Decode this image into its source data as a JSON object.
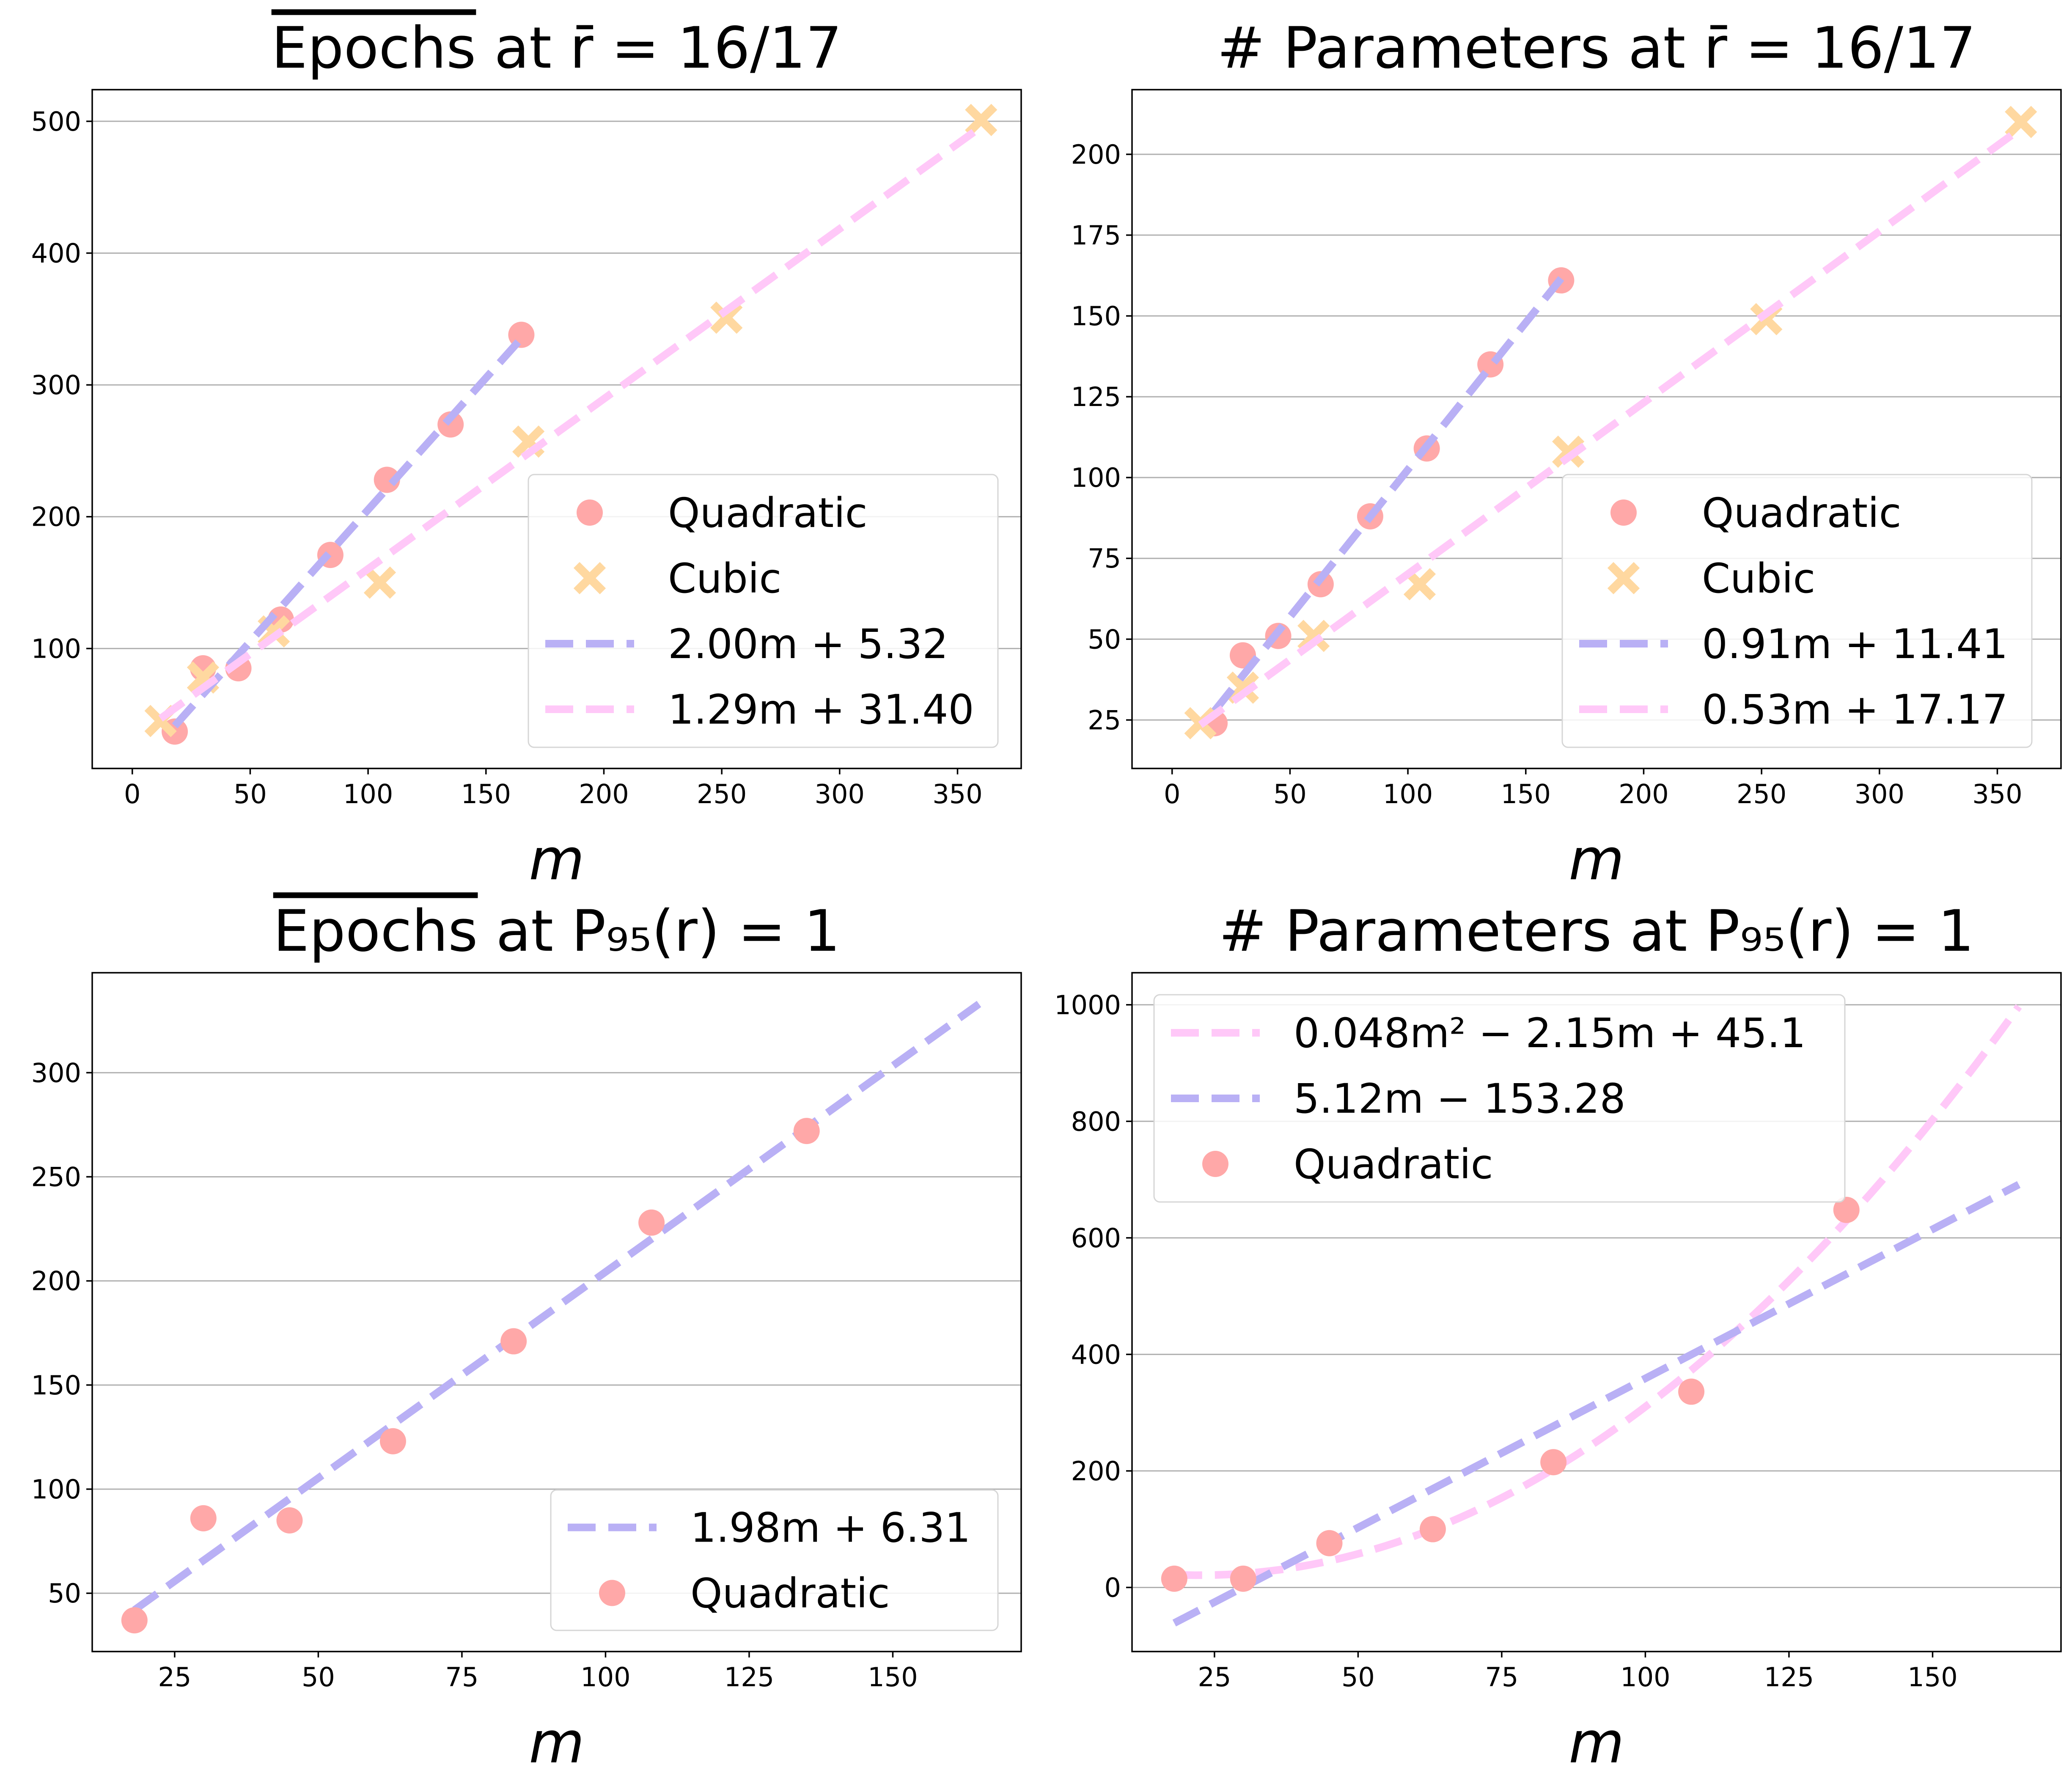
{
  "chart_data": [
    {
      "type": "scatter",
      "title": "Epochs  at r̄ = 16/17",
      "title_overline": "Epochs",
      "title_rest": "  at r̄ = 16/17",
      "xlabel": "m",
      "ylabel": "",
      "xlim": [
        -17,
        377
      ],
      "ylim": [
        9,
        524
      ],
      "xticks": [
        0,
        50,
        100,
        150,
        200,
        250,
        300,
        350
      ],
      "yticks": [
        100,
        200,
        300,
        400,
        500
      ],
      "grid": "y",
      "legend": "lower right",
      "series": [
        {
          "name": "Quadratic",
          "kind": "points",
          "marker": "circle",
          "color": "#ffa8a8",
          "x": [
            18,
            30,
            45,
            63,
            84,
            108,
            135,
            165
          ],
          "y": [
            37,
            85,
            85,
            122,
            171,
            228,
            270,
            338
          ]
        },
        {
          "name": "Cubic",
          "kind": "points",
          "marker": "x",
          "color": "#ffd8a0",
          "x": [
            12,
            30,
            60,
            105,
            168,
            252,
            360
          ],
          "y": [
            45,
            78,
            113,
            150,
            257,
            351,
            501
          ]
        },
        {
          "name": "2.00m + 5.32",
          "kind": "line",
          "color": "#b9b0f5",
          "x": [
            18,
            165
          ],
          "y": [
            41.3,
            335.3
          ]
        },
        {
          "name": "1.29m + 31.40",
          "kind": "line",
          "color": "#ffc8f8",
          "x": [
            12,
            360
          ],
          "y": [
            46.9,
            495.8
          ]
        }
      ]
    },
    {
      "type": "scatter",
      "title": "# Parameters at r̄ = 16/17",
      "title_overline": "",
      "title_rest": "# Parameters at r̄ = 16/17",
      "xlabel": "m",
      "ylabel": "",
      "xlim": [
        -17,
        377
      ],
      "ylim": [
        10,
        220
      ],
      "xticks": [
        0,
        50,
        100,
        150,
        200,
        250,
        300,
        350
      ],
      "yticks": [
        25,
        50,
        75,
        100,
        125,
        150,
        175,
        200
      ],
      "grid": "y",
      "legend": "lower right",
      "series": [
        {
          "name": "Quadratic",
          "kind": "points",
          "marker": "circle",
          "color": "#ffa8a8",
          "x": [
            18,
            30,
            45,
            63,
            84,
            108,
            135,
            165
          ],
          "y": [
            24,
            45,
            51,
            67,
            88,
            109,
            135,
            161
          ]
        },
        {
          "name": "Cubic",
          "kind": "points",
          "marker": "x",
          "color": "#ffd8a0",
          "x": [
            12,
            30,
            60,
            105,
            168,
            252,
            360
          ],
          "y": [
            24,
            35,
            51,
            67,
            108,
            149,
            210
          ]
        },
        {
          "name": "0.91m + 11.41",
          "kind": "line",
          "color": "#b9b0f5",
          "x": [
            18,
            165
          ],
          "y": [
            27.8,
            161.6
          ]
        },
        {
          "name": "0.53m + 17.17",
          "kind": "line",
          "color": "#ffc8f8",
          "x": [
            12,
            360
          ],
          "y": [
            23.5,
            208
          ]
        }
      ]
    },
    {
      "type": "scatter",
      "title": "Epochs at P95(r) = 1",
      "title_overline": "Epochs",
      "title_rest": " at P₉₅(r) = 1",
      "xlabel": "m",
      "ylabel": "",
      "xlim": [
        10.65,
        172.35
      ],
      "ylim": [
        22,
        348
      ],
      "xticks": [
        25,
        50,
        75,
        100,
        125,
        150
      ],
      "yticks": [
        50,
        100,
        150,
        200,
        250,
        300
      ],
      "grid": "y",
      "legend": "lower right",
      "series": [
        {
          "name": "1.98m + 6.31",
          "kind": "line",
          "color": "#b9b0f5",
          "x": [
            18,
            165
          ],
          "y": [
            41.95,
            333
          ]
        },
        {
          "name": "Quadratic",
          "kind": "points",
          "marker": "circle",
          "color": "#ffa8a8",
          "x": [
            18,
            30,
            45,
            63,
            84,
            108,
            135
          ],
          "y": [
            37,
            86,
            85,
            123,
            171,
            228,
            272
          ]
        }
      ]
    },
    {
      "type": "scatter",
      "title": "# Parameters at P95(r) = 1",
      "title_overline": "",
      "title_rest": "# Parameters at P₉₅(r) = 1",
      "xlabel": "m",
      "ylabel": "",
      "xlim": [
        10.65,
        172.35
      ],
      "ylim": [
        -110,
        1055
      ],
      "xticks": [
        25,
        50,
        75,
        100,
        125,
        150
      ],
      "yticks": [
        0,
        200,
        400,
        600,
        800,
        1000
      ],
      "grid": "y",
      "legend": "upper left",
      "series": [
        {
          "name": "0.048m² − 2.15m + 45.1",
          "kind": "curve",
          "color": "#ffc8f8",
          "x_range": [
            18,
            165
          ],
          "coef": [
            0.048,
            -2.15,
            45.1
          ]
        },
        {
          "name": "5.12m − 153.28",
          "kind": "line",
          "color": "#b9b0f5",
          "x": [
            18,
            165
          ],
          "y": [
            -61.12,
            691.52
          ]
        },
        {
          "name": "Quadratic",
          "kind": "points",
          "marker": "circle",
          "color": "#ffa8a8",
          "x": [
            18,
            30,
            45,
            63,
            84,
            108,
            135
          ],
          "y": [
            15,
            15,
            76,
            100,
            215,
            336,
            648
          ]
        }
      ]
    }
  ]
}
